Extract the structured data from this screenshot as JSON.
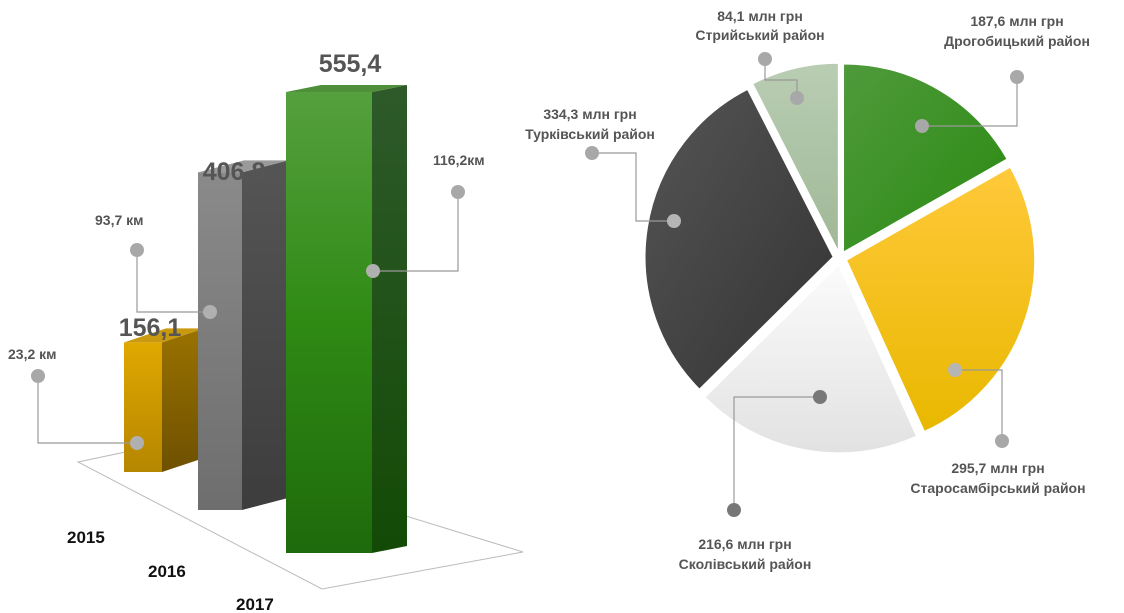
{
  "chart_data": [
    {
      "type": "bar",
      "categories": [
        "2015",
        "2016",
        "2017"
      ],
      "values": [
        156.1,
        406.8,
        555.4
      ],
      "value_labels": [
        "156,1",
        "406,8",
        "555,4"
      ],
      "annotations": [
        "23,2 км",
        "93,7 км",
        "116,2км"
      ],
      "colors": [
        "#d4a20a",
        "#7a7a7a",
        "#3a9a28"
      ]
    },
    {
      "type": "pie",
      "slices": [
        {
          "label": "Дрогобицький район",
          "value": 187.6,
          "value_label": "187,6 млн грн",
          "color": "#2e8b1e"
        },
        {
          "label": "Старосамбірський район",
          "value": 295.7,
          "value_label": "295,7 млн грн",
          "color": "#f5c400"
        },
        {
          "label": "Сколівський район",
          "value": 216.6,
          "value_label": "216,6 млн грн",
          "color": "#ededed"
        },
        {
          "label": "Турківський район",
          "value": 334.3,
          "value_label": "334,3 млн грн",
          "color": "#444444"
        },
        {
          "label": "Стрийський район",
          "value": 84.1,
          "value_label": "84,1 млн грн",
          "color": "#aec3a6"
        }
      ]
    }
  ]
}
